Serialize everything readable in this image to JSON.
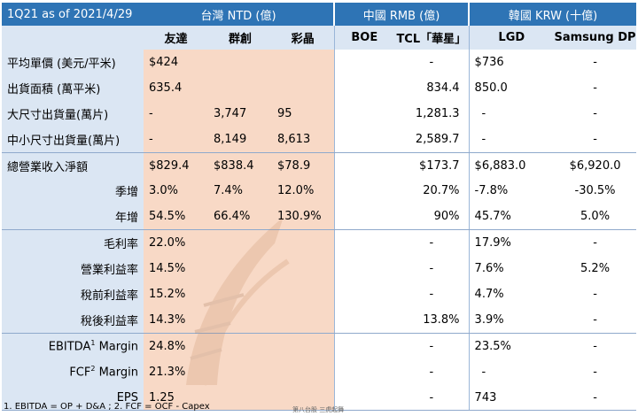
{
  "header": {
    "period": "1Q21 as of 2021/4/29",
    "groups": [
      "台灣 NTD (億)",
      "中國 RMB (億)",
      "韓國 KRW (十億)"
    ]
  },
  "companies": [
    "友達",
    "群創",
    "彩晶",
    "BOE",
    "TCL「華星」",
    "LGD",
    "Samsung DP"
  ],
  "rows": [
    {
      "label": "平均單價 (美元/平米)",
      "values": [
        "$424",
        "",
        "",
        "",
        "-",
        "$736",
        "-"
      ]
    },
    {
      "label": "出貨面積 (萬平米)",
      "values": [
        "635.4",
        "",
        "",
        "",
        "834.4",
        "850.0",
        "-"
      ]
    },
    {
      "label": "大尺寸出貨量(萬片)",
      "values": [
        "-",
        "3,747",
        "95",
        "",
        "1,281.3",
        "-",
        "-"
      ]
    },
    {
      "label": "中小尺寸出貨量(萬片)",
      "values": [
        "-",
        "8,149",
        "8,613",
        "",
        "2,589.7",
        "-",
        "-"
      ]
    },
    {
      "label": "總營業收入淨額",
      "values": [
        "$829.4",
        "$838.4",
        "$78.9",
        "",
        "$173.7",
        "$6,883.0",
        "$6,920.0"
      ]
    },
    {
      "label": "季增",
      "values": [
        "3.0%",
        "7.4%",
        "12.0%",
        "",
        "20.7%",
        "-7.8%",
        "-30.5%"
      ]
    },
    {
      "label": "年增",
      "values": [
        "54.5%",
        "66.4%",
        "130.9%",
        "",
        "90%",
        "45.7%",
        "5.0%"
      ]
    },
    {
      "label": "毛利率",
      "values": [
        "22.0%",
        "",
        "",
        "",
        "-",
        "17.9%",
        "-"
      ]
    },
    {
      "label": "營業利益率",
      "values": [
        "14.5%",
        "",
        "",
        "",
        "-",
        "7.6%",
        "5.2%"
      ]
    },
    {
      "label": "稅前利益率",
      "values": [
        "15.2%",
        "",
        "",
        "",
        "-",
        "4.7%",
        "-"
      ]
    },
    {
      "label": "稅後利益率",
      "values": [
        "14.3%",
        "",
        "",
        "",
        "13.8%",
        "3.9%",
        "-"
      ]
    },
    {
      "label_main": "EBITDA",
      "label_sup": "1",
      "label_tail": " Margin",
      "values": [
        "24.8%",
        "",
        "",
        "",
        "-",
        "23.5%",
        "-"
      ]
    },
    {
      "label_main": "FCF",
      "label_sup": "2",
      "label_tail": " Margin",
      "values": [
        "21.3%",
        "",
        "",
        "",
        "-",
        "-",
        "-"
      ]
    },
    {
      "label": "EPS",
      "values": [
        "1.25",
        "",
        "",
        "",
        "-",
        "743",
        "-"
      ]
    }
  ],
  "footnote": "1. EBITDA = OP + D&A ; 2. FCF = OCF - Capex",
  "source": "第八台股 三虎起舞"
}
